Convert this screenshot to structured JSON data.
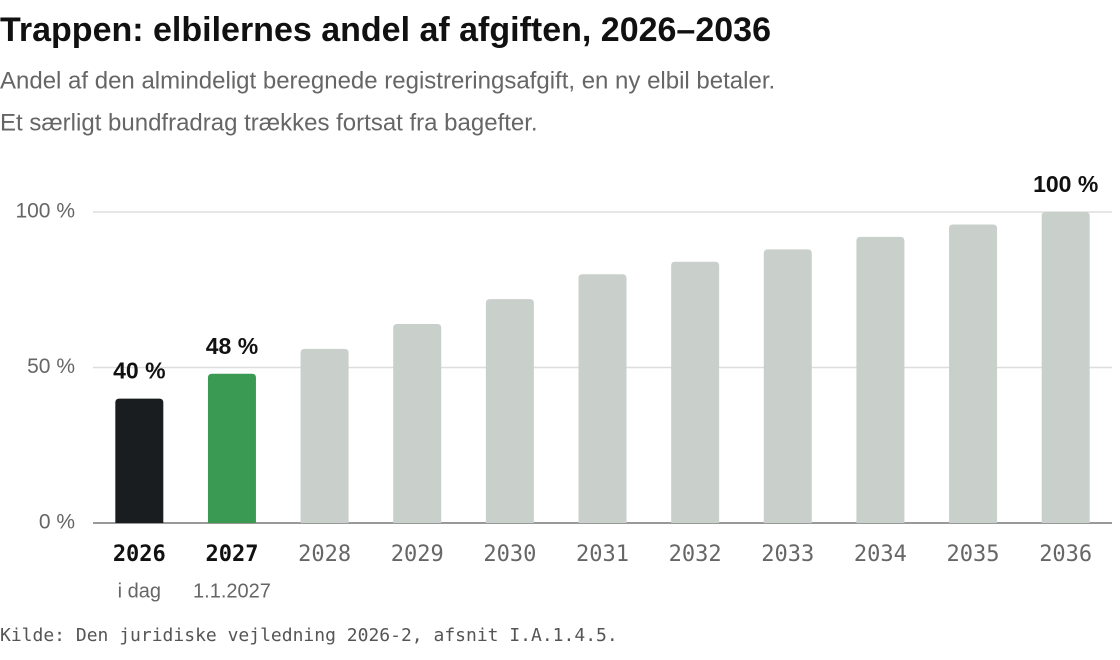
{
  "chart_data": {
    "type": "bar",
    "title": "Trappen: elbilernes andel af afgiften, 2026–2036",
    "subtitle": [
      "Andel af den almindeligt beregnede registreringsafgift, en ny elbil betaler.",
      "Et særligt bundfradrag trækkes fortsat fra bagefter."
    ],
    "categories": [
      "2026",
      "2027",
      "2028",
      "2029",
      "2030",
      "2031",
      "2032",
      "2033",
      "2034",
      "2035",
      "2036"
    ],
    "category_sublabels": [
      "i dag",
      "1.1.2027",
      null,
      null,
      null,
      null,
      null,
      null,
      null,
      null,
      null
    ],
    "values": [
      40,
      48,
      56,
      64,
      72,
      80,
      84,
      88,
      92,
      96,
      100
    ],
    "value_labels": [
      "40 %",
      "48 %",
      null,
      null,
      null,
      null,
      null,
      null,
      null,
      null,
      "100 %"
    ],
    "colors": [
      "#1a1d1f",
      "#3a9a54",
      "#c9cfcb",
      "#c9cfcb",
      "#c9cfcb",
      "#c9cfcb",
      "#c9cfcb",
      "#c9cfcb",
      "#c9cfcb",
      "#c9cfcb",
      "#c9cfcb"
    ],
    "ylim": [
      0,
      100
    ],
    "yticks": [
      {
        "value": 0,
        "label": "0 %"
      },
      {
        "value": 50,
        "label": "50 %"
      },
      {
        "value": 100,
        "label": "100 %"
      }
    ],
    "grid": true,
    "source": "Kilde: Den juridiske vejledning 2026-2, afsnit I.A.1.4.5."
  }
}
